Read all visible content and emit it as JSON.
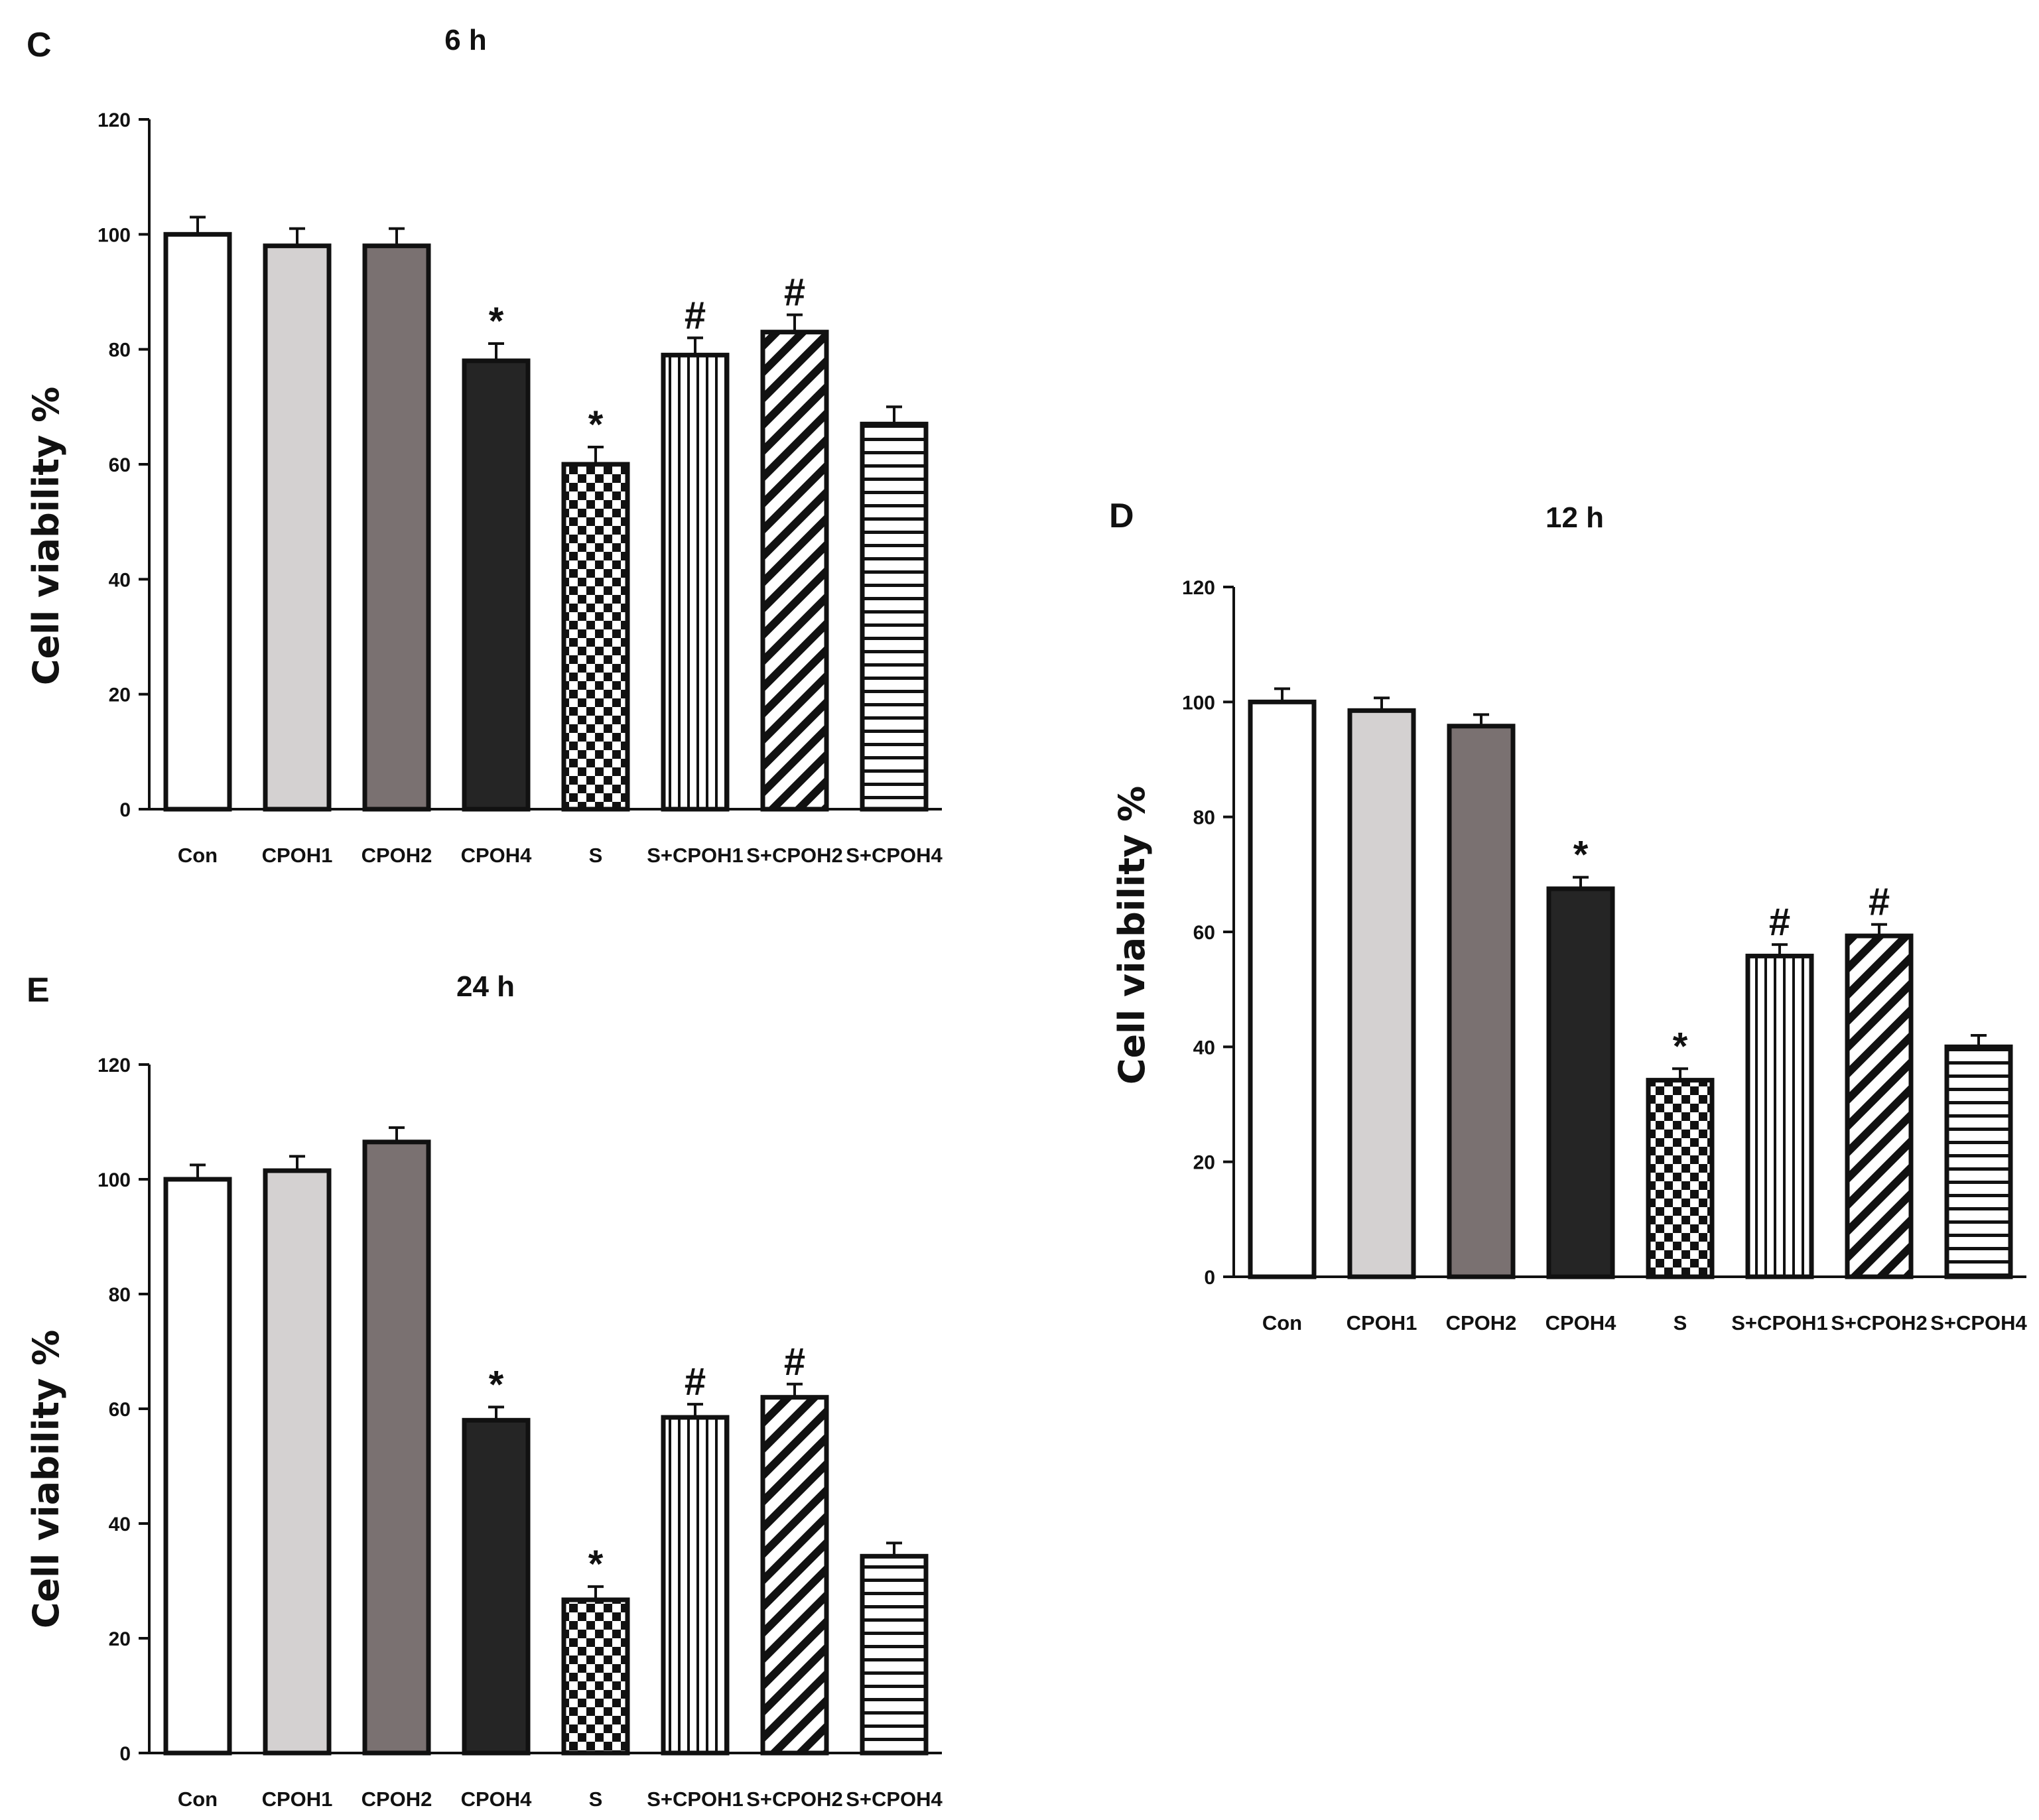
{
  "chart_data": [
    {
      "panel": "C",
      "type": "bar",
      "title": "6 h",
      "xlabel": "",
      "ylabel": "Cell viability %",
      "ylim": [
        0,
        120
      ],
      "yticks": [
        0,
        20,
        40,
        60,
        80,
        100,
        120
      ],
      "categories": [
        "Con",
        "CPOH1",
        "CPOH2",
        "CPOH4",
        "S",
        "S+CPOH1",
        "S+CPOH2",
        "S+CPOH4"
      ],
      "values": [
        100,
        98,
        98,
        78,
        60,
        79,
        83,
        67
      ],
      "errors": [
        3,
        3,
        3,
        3,
        3,
        3,
        3,
        3
      ],
      "annotations": [
        "",
        "",
        "",
        "*",
        "*",
        "#",
        "#",
        ""
      ]
    },
    {
      "panel": "D",
      "type": "bar",
      "title": "12 h",
      "xlabel": "",
      "ylabel": "Cell viability %",
      "ylim": [
        0,
        120
      ],
      "yticks": [
        0,
        20,
        40,
        60,
        80,
        100,
        120
      ],
      "categories": [
        "Con",
        "CPOH1",
        "CPOH2",
        "CPOH4",
        "S",
        "S+CPOH1",
        "S+CPOH2",
        "S+CPOH4"
      ],
      "values": [
        100,
        98.5,
        95.8,
        67.5,
        34.2,
        55.8,
        59.3,
        40
      ],
      "errors": [
        2.3,
        2.2,
        2,
        2,
        2,
        2,
        2,
        2
      ],
      "annotations": [
        "",
        "",
        "",
        "*",
        "*",
        "#",
        "#",
        ""
      ]
    },
    {
      "panel": "E",
      "type": "bar",
      "title": "24 h",
      "xlabel": "",
      "ylabel": "Cell viability %",
      "ylim": [
        0,
        120
      ],
      "yticks": [
        0,
        20,
        40,
        60,
        80,
        100,
        120
      ],
      "categories": [
        "Con",
        "CPOH1",
        "CPOH2",
        "CPOH4",
        "S",
        "S+CPOH1",
        "S+CPOH2",
        "S+CPOH4"
      ],
      "values": [
        100,
        101.5,
        106.5,
        58,
        26.7,
        58.5,
        62,
        34.3
      ],
      "errors": [
        2.5,
        2.5,
        2.5,
        2.3,
        2.3,
        2.3,
        2.3,
        2.3
      ],
      "annotations": [
        "",
        "",
        "",
        "*",
        "*",
        "#",
        "#",
        ""
      ]
    }
  ],
  "colors": {
    "axis": "#111111",
    "bar_outline": "#111111",
    "bar_fills": [
      "#ffffff",
      "#d4d1d1",
      "#7a7171",
      "#252525",
      "checker",
      "vertical-stripes",
      "diagonal-stripes",
      "horizontal-stripes"
    ]
  }
}
